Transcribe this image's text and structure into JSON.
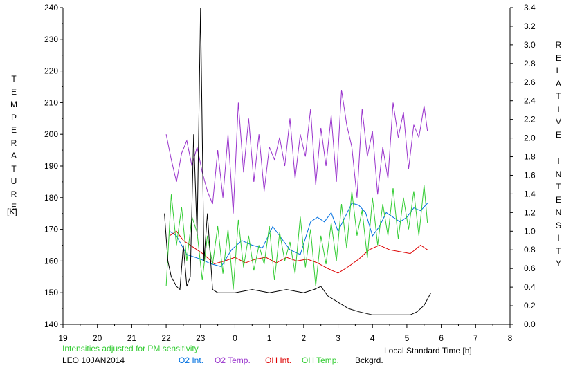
{
  "chart_data": {
    "type": "line",
    "left_axis": {
      "label": "TEMPERATURE",
      "unit": "[K]",
      "ylim": [
        140,
        240
      ],
      "ticks": [
        "140",
        "150",
        "160",
        "170",
        "180",
        "190",
        "200",
        "210",
        "220",
        "230",
        "240"
      ]
    },
    "right_axis": {
      "label": "RELATIVE INTENSITY",
      "ylim": [
        0,
        3.4
      ],
      "ticks": [
        "0.0",
        "0.2",
        "0.4",
        "0.6",
        "0.8",
        "1.0",
        "1.2",
        "1.4",
        "1.6",
        "1.8",
        "2.0",
        "2.2",
        "2.4",
        "2.6",
        "2.8",
        "3.0",
        "3.2",
        "3.4"
      ]
    },
    "x_axis": {
      "label": "Local Standard Time [h]",
      "xlim": [
        19,
        32
      ],
      "ticks": [
        "19",
        "20",
        "21",
        "22",
        "23",
        "0",
        "1",
        "2",
        "3",
        "4",
        "5",
        "6",
        "7",
        "8"
      ]
    },
    "grid": false,
    "series": [
      {
        "name": "O2 Int.",
        "color": "#0070e0",
        "axis": "right",
        "x": [
          22.1,
          22.3,
          22.6,
          23.0,
          23.3,
          23.6,
          23.9,
          24.2,
          24.5,
          24.8,
          25.1,
          25.3,
          25.6,
          25.9,
          26.2,
          26.4,
          26.6,
          26.8,
          27.0,
          27.2,
          27.4,
          27.6,
          27.8,
          28.0,
          28.2,
          28.4,
          28.6,
          28.8,
          29.0,
          29.2,
          29.4,
          29.6
        ],
        "values": [
          1.0,
          0.95,
          0.75,
          0.7,
          0.65,
          0.62,
          0.8,
          0.9,
          0.85,
          0.82,
          1.05,
          0.95,
          0.8,
          0.75,
          1.1,
          1.15,
          1.1,
          1.2,
          1.0,
          1.15,
          1.3,
          1.28,
          1.2,
          0.95,
          1.05,
          1.2,
          1.15,
          1.1,
          1.15,
          1.25,
          1.22,
          1.3
        ]
      },
      {
        "name": "O2 Temp.",
        "color": "#9933cc",
        "axis": "left",
        "x": [
          22.0,
          22.15,
          22.3,
          22.45,
          22.6,
          22.75,
          22.9,
          23.05,
          23.2,
          23.35,
          23.5,
          23.65,
          23.8,
          23.95,
          24.1,
          24.25,
          24.4,
          24.55,
          24.7,
          24.85,
          25.0,
          25.15,
          25.3,
          25.45,
          25.6,
          25.75,
          25.9,
          26.05,
          26.2,
          26.35,
          26.5,
          26.65,
          26.8,
          26.95,
          27.1,
          27.25,
          27.4,
          27.55,
          27.7,
          27.85,
          28.0,
          28.15,
          28.3,
          28.45,
          28.6,
          28.75,
          28.9,
          29.05,
          29.2,
          29.35,
          29.5,
          29.6
        ],
        "values": [
          200,
          192,
          185,
          194,
          198,
          190,
          196,
          188,
          182,
          178,
          195,
          180,
          200,
          175,
          210,
          188,
          205,
          185,
          200,
          182,
          196,
          192,
          199,
          190,
          205,
          186,
          200,
          193,
          208,
          184,
          202,
          190,
          206,
          185,
          214,
          203,
          196,
          180,
          208,
          193,
          201,
          181,
          196,
          186,
          210,
          199,
          207,
          189,
          203,
          199,
          209,
          201
        ]
      },
      {
        "name": "OH Int.",
        "color": "#dd0000",
        "axis": "right",
        "x": [
          22.1,
          22.3,
          22.5,
          22.9,
          23.1,
          23.4,
          23.7,
          24.0,
          24.3,
          24.6,
          24.9,
          25.2,
          25.5,
          25.8,
          26.1,
          26.4,
          26.7,
          27.0,
          27.3,
          27.6,
          27.9,
          28.2,
          28.5,
          28.8,
          29.1,
          29.4,
          29.6
        ],
        "values": [
          0.95,
          1.0,
          0.9,
          0.8,
          0.75,
          0.65,
          0.68,
          0.72,
          0.66,
          0.7,
          0.72,
          0.66,
          0.72,
          0.68,
          0.7,
          0.66,
          0.6,
          0.55,
          0.62,
          0.7,
          0.8,
          0.85,
          0.8,
          0.78,
          0.76,
          0.85,
          0.8
        ]
      },
      {
        "name": "OH Temp.",
        "color": "#33cc33",
        "axis": "left",
        "x": [
          22.0,
          22.15,
          22.3,
          22.45,
          22.6,
          22.75,
          22.9,
          23.05,
          23.2,
          23.35,
          23.5,
          23.65,
          23.8,
          23.95,
          24.1,
          24.25,
          24.4,
          24.55,
          24.7,
          24.85,
          25.0,
          25.15,
          25.3,
          25.45,
          25.6,
          25.75,
          25.9,
          26.05,
          26.2,
          26.35,
          26.5,
          26.65,
          26.8,
          26.95,
          27.1,
          27.25,
          27.4,
          27.55,
          27.7,
          27.85,
          28.0,
          28.15,
          28.3,
          28.45,
          28.6,
          28.75,
          28.9,
          29.05,
          29.2,
          29.35,
          29.5,
          29.6
        ],
        "values": [
          152,
          181,
          165,
          177,
          160,
          174,
          169,
          154,
          168,
          159,
          171,
          156,
          170,
          151,
          173,
          158,
          168,
          157,
          165,
          159,
          171,
          154,
          169,
          160,
          166,
          156,
          174,
          158,
          170,
          152,
          168,
          159,
          172,
          160,
          178,
          164,
          182,
          168,
          176,
          161,
          180,
          165,
          178,
          168,
          183,
          167,
          180,
          170,
          182,
          168,
          184,
          172
        ]
      },
      {
        "name": "Bckgrd.",
        "color": "#000000",
        "axis": "left",
        "x": [
          21.95,
          22.05,
          22.15,
          22.3,
          22.4,
          22.5,
          22.6,
          22.7,
          22.8,
          22.9,
          23.0,
          23.1,
          23.2,
          23.35,
          23.5,
          24.0,
          24.5,
          25.0,
          25.5,
          26.0,
          26.3,
          26.5,
          26.7,
          27.0,
          27.3,
          27.6,
          28.0,
          28.4,
          28.8,
          29.1,
          29.3,
          29.5,
          29.7
        ],
        "values": [
          175,
          160,
          155,
          152,
          151,
          165,
          152,
          155,
          200,
          168,
          240,
          160,
          175,
          151,
          150,
          150,
          151,
          150,
          151,
          150,
          151,
          152,
          149,
          147,
          145,
          144,
          143,
          143,
          143,
          143,
          144,
          146,
          150
        ]
      }
    ],
    "annotations": [
      "Intensities adjusted for PM sensitivity",
      "LEO 10JAN2014"
    ]
  },
  "legend": {
    "note": "Intensities adjusted for PM sensitivity",
    "station": "LEO 10JAN2014",
    "items": [
      "O2 Int.",
      "O2 Temp.",
      "OH Int.",
      "OH Temp.",
      "Bckgrd."
    ]
  }
}
